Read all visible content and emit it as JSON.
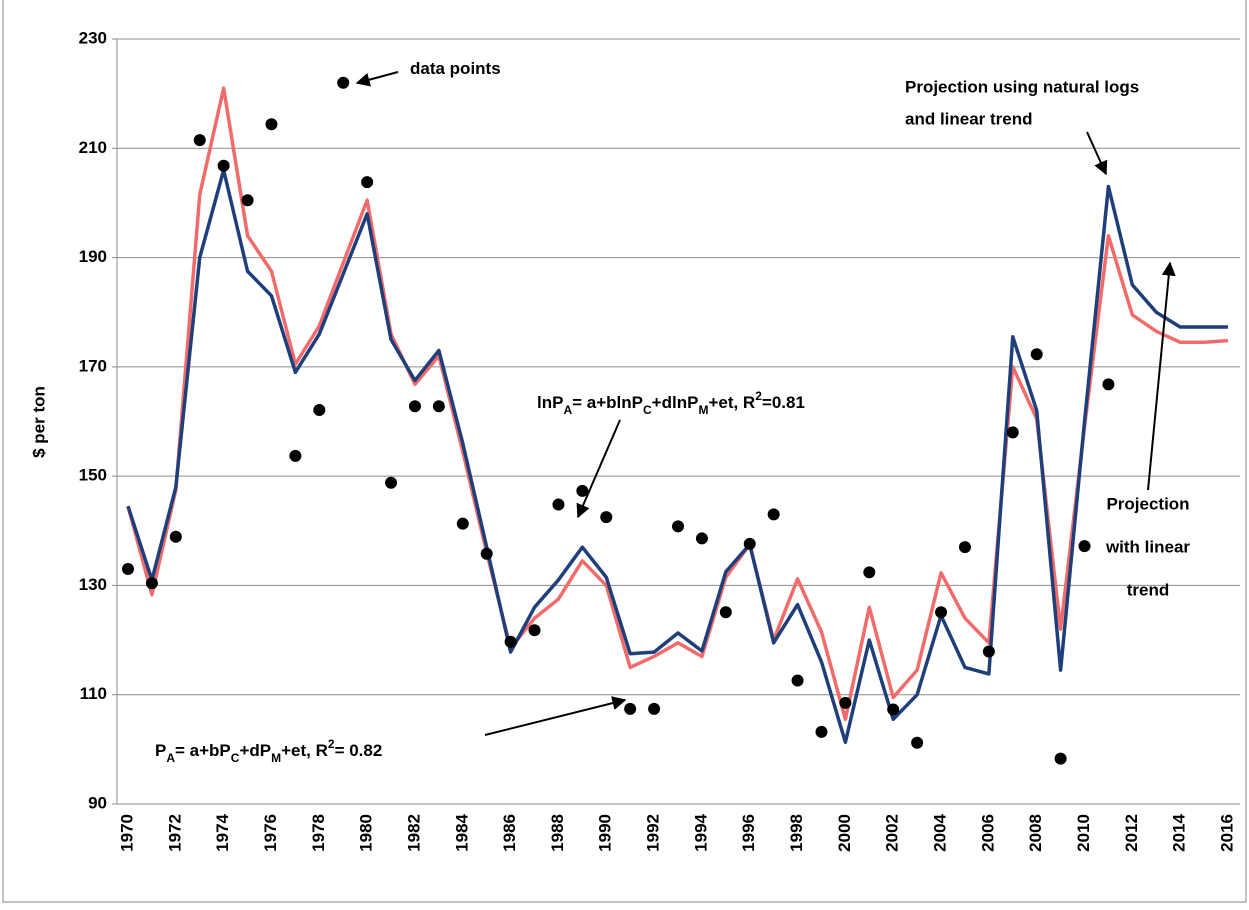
{
  "chart_data": {
    "type": "line",
    "y_label": "$ per ton",
    "categories": [
      "1970",
      null,
      "1972",
      null,
      "1974",
      null,
      "1976",
      null,
      "1978",
      null,
      "1980",
      null,
      "1982",
      null,
      "1984",
      null,
      "1986",
      null,
      "1988",
      null,
      "1990",
      null,
      "1992",
      null,
      "1994",
      null,
      "1996",
      null,
      "1998",
      null,
      "2000",
      null,
      "2002",
      null,
      "2004",
      null,
      "2006",
      null,
      "2008",
      null,
      "2010",
      null,
      "2012",
      null,
      "2014",
      null,
      "2016"
    ],
    "ylim": [
      90,
      230
    ],
    "yticks": [
      90,
      110,
      130,
      150,
      170,
      190,
      210,
      230
    ],
    "grid": true,
    "series": [
      {
        "type": "scatter",
        "color": "#000000",
        "values": [
          133,
          130.4,
          138.9,
          211.5,
          206.8,
          200.5,
          214.4,
          153.7,
          162.1,
          222,
          203.8,
          148.8,
          162.8,
          162.8,
          141.3,
          135.8,
          119.7,
          121.8,
          144.8,
          147.3,
          142.5,
          107.4,
          107.4,
          140.8,
          138.6,
          125.1,
          137.6,
          143,
          112.6,
          103.2,
          108.5,
          132.4,
          107.3,
          101.2,
          125.1,
          137,
          117.9,
          158,
          172.3,
          98.3,
          137.2,
          166.8,
          null,
          null,
          null,
          null,
          null
        ]
      },
      {
        "type": "line",
        "color": "#f26b6b",
        "values": [
          144.5,
          128.3,
          147.5,
          201.5,
          221,
          194,
          187.5,
          170.5,
          177.5,
          189,
          200.5,
          176,
          166.8,
          172,
          154.5,
          136,
          118.5,
          124,
          127.5,
          134.5,
          130,
          115,
          117,
          119.5,
          117,
          131.5,
          137.5,
          120,
          131.2,
          121.5,
          105.5,
          126,
          109.5,
          114.5,
          132.3,
          124,
          119.5,
          170,
          160.5,
          122,
          159,
          194,
          179.5,
          176.5,
          174.5,
          174.5,
          174.8
        ]
      },
      {
        "type": "line",
        "color": "#1f3f7a",
        "values": [
          144.5,
          131,
          148,
          190,
          206,
          187.5,
          183,
          169,
          176,
          187,
          198,
          175,
          167.5,
          173,
          156,
          137,
          117.8,
          126,
          131,
          137,
          131.5,
          117.5,
          117.8,
          121.3,
          118,
          132.5,
          137.5,
          119.5,
          126.5,
          116,
          101.3,
          120,
          105.5,
          110,
          124.5,
          115,
          113.8,
          175.5,
          162,
          114.5,
          160,
          203,
          185,
          180,
          177.3,
          177.3,
          177.3
        ]
      }
    ],
    "annotations": [
      {
        "parts": [
          {
            "t": "data points"
          }
        ]
      },
      {
        "parts": [
          {
            "t": "lnP"
          },
          {
            "t": "A",
            "shift": "sub"
          },
          {
            "t": "= a+blnP"
          },
          {
            "t": "C",
            "shift": "sub"
          },
          {
            "t": "+dlnP"
          },
          {
            "t": "M",
            "shift": "sub"
          },
          {
            "t": "+et,   R"
          },
          {
            "t": "2",
            "shift": "super"
          },
          {
            "t": "=0.81"
          }
        ]
      },
      {
        "parts": [
          {
            "t": "P"
          },
          {
            "t": "A",
            "shift": "sub"
          },
          {
            "t": "= a+bP"
          },
          {
            "t": "C",
            "shift": "sub"
          },
          {
            "t": "+dP"
          },
          {
            "t": "M",
            "shift": "sub"
          },
          {
            "t": "+et,   R"
          },
          {
            "t": "2",
            "shift": "super"
          },
          {
            "t": "= 0.82"
          }
        ]
      },
      {
        "lines": [
          "Projection using natural logs",
          "and linear trend"
        ]
      },
      {
        "lines": [
          "Projection",
          "with linear",
          "trend"
        ]
      }
    ]
  }
}
